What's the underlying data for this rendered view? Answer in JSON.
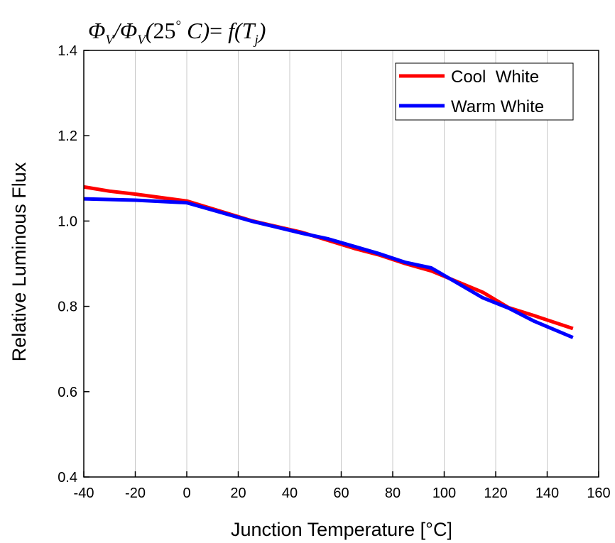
{
  "chart_data": {
    "type": "line",
    "title": "Φ_V / Φ_V (25° C) = f(T_j)",
    "title_parts": {
      "phi1": "Φ",
      "sub1": "V",
      "slash": "/",
      "phi2": "Φ",
      "sub2": "V",
      "paren_open": "(",
      "temp": "25",
      "degree": "°",
      "unit": " C",
      "paren_close": ")",
      "equals": "= ",
      "func": "f",
      "paren_open2": "(",
      "var": "T",
      "sub3": "j",
      "paren_close2": ")"
    },
    "xlabel": "Junction Temperature [°C]",
    "ylabel": "Relative Luminous Flux",
    "xlim": [
      -40,
      160
    ],
    "ylim": [
      0.4,
      1.4
    ],
    "x_ticks": [
      "-40",
      "-20",
      "0",
      "20",
      "40",
      "60",
      "80",
      "100",
      "120",
      "140",
      "160"
    ],
    "y_ticks": [
      "0.4",
      "0.6",
      "0.8",
      "1.0",
      "1.2",
      "1.4"
    ],
    "grid": "vertical",
    "legend_position": "top-right",
    "series": [
      {
        "name": "Cool  White",
        "color": "#ff0000",
        "x": [
          -40,
          -30,
          -20,
          0,
          25,
          45,
          65,
          75,
          85,
          95,
          115,
          125,
          135,
          150
        ],
        "y": [
          1.08,
          1.07,
          1.063,
          1.047,
          1.001,
          0.973,
          0.936,
          0.92,
          0.9,
          0.883,
          0.833,
          0.797,
          0.778,
          0.748
        ]
      },
      {
        "name": "Warm White",
        "color": "#0000ff",
        "x": [
          -40,
          -20,
          0,
          25,
          45,
          55,
          75,
          85,
          95,
          115,
          125,
          135,
          150
        ],
        "y": [
          1.052,
          1.049,
          1.043,
          1.0,
          0.971,
          0.958,
          0.923,
          0.903,
          0.89,
          0.82,
          0.796,
          0.765,
          0.727
        ]
      }
    ]
  }
}
